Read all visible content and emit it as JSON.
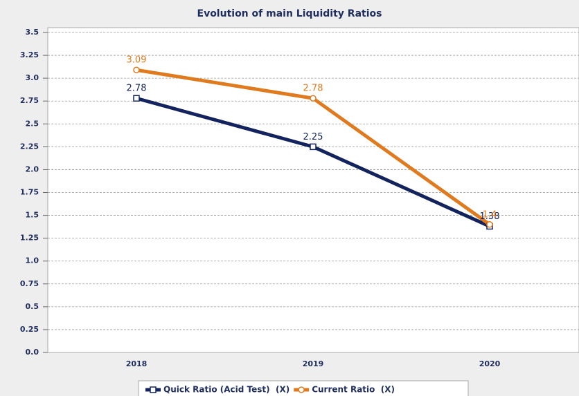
{
  "chart_data": {
    "type": "line",
    "title": "Evolution of main Liquidity Ratios",
    "categories": [
      "2018",
      "2019",
      "2020"
    ],
    "series": [
      {
        "name": "Quick Ratio (Acid Test)  (X)",
        "color": "#13235e",
        "marker": "square",
        "values": [
          2.78,
          2.25,
          1.38
        ]
      },
      {
        "name": "Current Ratio  (X)",
        "color": "#e07a1f",
        "marker": "circle",
        "values": [
          3.09,
          2.78,
          1.4
        ]
      }
    ],
    "ylim": [
      0,
      3.5
    ],
    "yticks": [
      {
        "value": 0,
        "label": "0.0"
      },
      0.25,
      0.5,
      0.75,
      {
        "value": 1,
        "label": "1.0"
      },
      1.25,
      1.5,
      1.75,
      {
        "value": 2,
        "label": "2.0"
      },
      2.25,
      2.5,
      2.75,
      {
        "value": 3,
        "label": "3.0"
      },
      3.25,
      3.5
    ],
    "grid": true,
    "legend": "bottom"
  }
}
